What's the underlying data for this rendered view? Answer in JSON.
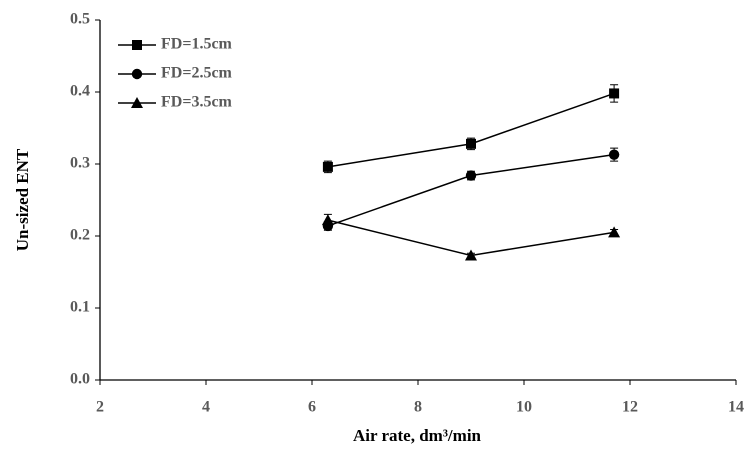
{
  "chart_data": {
    "type": "line",
    "x_label": "Air rate, dm³/min",
    "y_label": "Un-sized ENT",
    "x": [
      6.3,
      9,
      11.7
    ],
    "series": [
      {
        "name": "FD=1.5cm",
        "color": "#000000",
        "marker": "square",
        "values": [
          0.296,
          0.328,
          0.398
        ],
        "errors": [
          0.008,
          0.008,
          0.012
        ]
      },
      {
        "name": "FD=2.5cm",
        "color": "#000000",
        "marker": "circle",
        "values": [
          0.214,
          0.284,
          0.313
        ],
        "errors": [
          0.006,
          0.006,
          0.009
        ]
      },
      {
        "name": "FD=3.5cm",
        "color": "#000000",
        "marker": "triangle",
        "values": [
          0.222,
          0.173,
          0.205
        ],
        "errors": [
          0.008,
          0.003,
          0.004
        ]
      }
    ],
    "xlim": [
      2,
      14
    ],
    "xticks": [
      2,
      4,
      6,
      8,
      10,
      12,
      14
    ],
    "ylim": [
      0,
      0.5
    ],
    "yticks": [
      {
        "value": 0,
        "label": "0.0"
      },
      0.1,
      0.2,
      0.3,
      0.4,
      0.5
    ],
    "grid": false,
    "legend": "upper left"
  }
}
